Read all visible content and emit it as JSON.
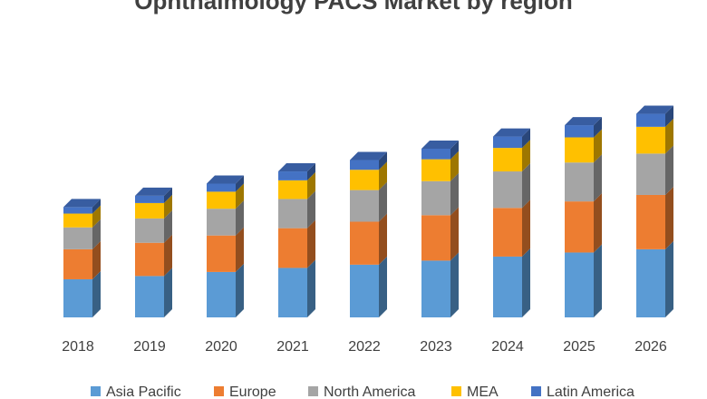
{
  "chart_data": {
    "type": "bar",
    "stacked": true,
    "three_d": true,
    "title": "Ophthalmology PACS Market by region",
    "categories": [
      "2018",
      "2019",
      "2020",
      "2021",
      "2022",
      "2023",
      "2024",
      "2025",
      "2026"
    ],
    "series": [
      {
        "name": "Asia Pacific",
        "color": "#5b9bd5",
        "values": [
          47,
          51,
          56,
          61,
          65,
          70,
          75,
          80,
          84
        ]
      },
      {
        "name": "Europe",
        "color": "#ed7d31",
        "values": [
          37,
          41,
          45,
          49,
          53,
          56,
          60,
          63,
          67
        ]
      },
      {
        "name": "North America",
        "color": "#a5a5a5",
        "values": [
          27,
          30,
          33,
          36,
          39,
          42,
          45,
          48,
          51
        ]
      },
      {
        "name": "MEA",
        "color": "#ffc000",
        "values": [
          17,
          19,
          21,
          23,
          25,
          27,
          29,
          31,
          33
        ]
      },
      {
        "name": "Latin America",
        "color": "#4472c4",
        "values": [
          8,
          9,
          10,
          11,
          12,
          13,
          14,
          15,
          16
        ]
      }
    ],
    "ylim": [
      0,
      260
    ],
    "grid": false,
    "legend": "bottom"
  }
}
